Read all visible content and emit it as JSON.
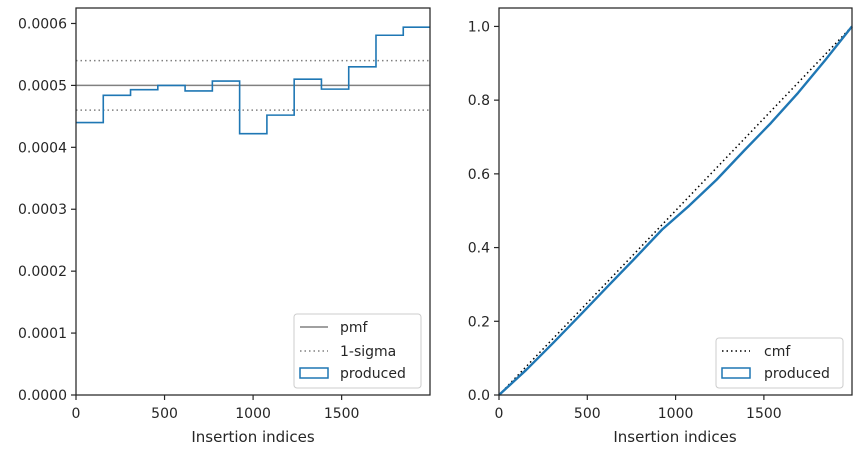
{
  "chart_data": [
    {
      "type": "step",
      "xlabel": "Insertion indices",
      "ylabel": "",
      "xlim": [
        0,
        1999
      ],
      "ylim": [
        0,
        0.000625
      ],
      "xticks": [
        0,
        500,
        1000,
        1500
      ],
      "xtick_labels": [
        "0",
        "500",
        "1000",
        "1500"
      ],
      "yticks": [
        0,
        0.0001,
        0.0002,
        0.0003,
        0.0004,
        0.0005,
        0.0006
      ],
      "ytick_labels": [
        "0.0000",
        "0.0001",
        "0.0002",
        "0.0003",
        "0.0004",
        "0.0005",
        "0.0006"
      ],
      "pmf": 0.0005,
      "sigma_upper": 0.00054,
      "sigma_lower": 0.00046,
      "bin_edges": [
        0,
        154,
        308,
        462,
        616,
        770,
        924,
        1078,
        1232,
        1386,
        1540,
        1694,
        1848,
        1999
      ],
      "produced": [
        0.00044,
        0.000484,
        0.000493,
        0.0005,
        0.000491,
        0.000507,
        0.000422,
        0.000452,
        0.00051,
        0.000494,
        0.00053,
        0.000581,
        0.000594
      ],
      "legend": {
        "position": "lower right",
        "entries": [
          {
            "label": "pmf",
            "style": "solid",
            "color": "#808080"
          },
          {
            "label": "1-sigma",
            "style": "dotted",
            "color": "#808080"
          },
          {
            "label": "produced",
            "style": "patch",
            "color": "#1f77b4"
          }
        ]
      }
    },
    {
      "type": "line",
      "xlabel": "Insertion indices",
      "ylabel": "",
      "xlim": [
        0,
        1999
      ],
      "ylim": [
        0,
        1.05
      ],
      "xticks": [
        0,
        500,
        1000,
        1500
      ],
      "xtick_labels": [
        "0",
        "500",
        "1000",
        "1500"
      ],
      "yticks": [
        0,
        0.2,
        0.4,
        0.6,
        0.8,
        1.0
      ],
      "ytick_labels": [
        "0.0",
        "0.2",
        "0.4",
        "0.6",
        "0.8",
        "1.0"
      ],
      "cmf": {
        "x": [
          0,
          1999
        ],
        "y": [
          0,
          1.0
        ]
      },
      "produced": {
        "x": [
          0,
          154,
          308,
          462,
          616,
          770,
          924,
          1078,
          1232,
          1386,
          1540,
          1694,
          1848,
          1999
        ],
        "y": [
          0,
          0.068,
          0.142,
          0.218,
          0.295,
          0.371,
          0.449,
          0.514,
          0.584,
          0.662,
          0.738,
          0.82,
          0.909,
          1.0
        ]
      },
      "legend": {
        "position": "lower right",
        "entries": [
          {
            "label": "cmf",
            "style": "dotted",
            "color": "#000000"
          },
          {
            "label": "produced",
            "style": "patch",
            "color": "#1f77b4"
          }
        ]
      }
    }
  ]
}
